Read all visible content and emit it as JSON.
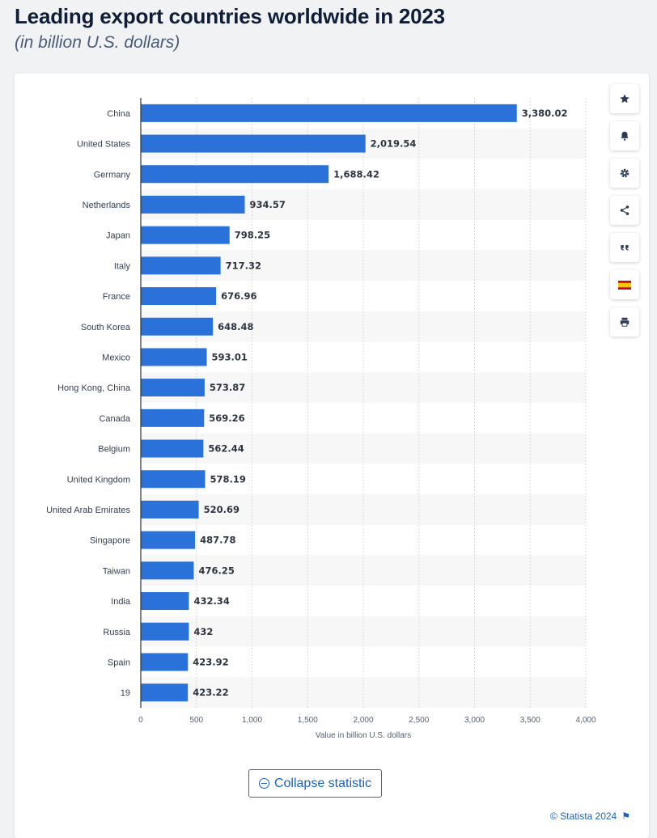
{
  "header": {
    "title": "Leading export countries worldwide in 2023",
    "subtitle": "(in billion U.S. dollars)"
  },
  "toolbar": {
    "items": [
      {
        "icon": "star-icon"
      },
      {
        "icon": "bell-icon"
      },
      {
        "icon": "gear-icon"
      },
      {
        "icon": "share-icon"
      },
      {
        "icon": "quote-icon"
      },
      {
        "icon": "spain-flag-icon"
      },
      {
        "icon": "print-icon"
      }
    ]
  },
  "actions": {
    "collapse_label": "Collapse statistic"
  },
  "footer": {
    "credit": "© Statista 2024",
    "flag_glyph": "⚑"
  },
  "colors": {
    "bar": "#2a72d9",
    "accent": "#1a63b8",
    "band": "#f7f7f7"
  },
  "chart_data": {
    "type": "bar",
    "orientation": "horizontal",
    "categories": [
      "China",
      "United States",
      "Germany",
      "Netherlands",
      "Japan",
      "Italy",
      "France",
      "South Korea",
      "Mexico",
      "Hong Kong, China",
      "Canada",
      "Belgium",
      "United Kingdom",
      "United Arab Emirates",
      "Singapore",
      "Taiwan",
      "India",
      "Russia",
      "Spain",
      "19"
    ],
    "values": [
      3380.02,
      2019.54,
      1688.42,
      934.57,
      798.25,
      717.32,
      676.96,
      648.48,
      593.01,
      573.87,
      569.26,
      562.44,
      578.19,
      520.69,
      487.78,
      476.25,
      432.34,
      432,
      423.92,
      423.22
    ],
    "value_labels": [
      "3,380.02",
      "2,019.54",
      "1,688.42",
      "934.57",
      "798.25",
      "717.32",
      "676.96",
      "648.48",
      "593.01",
      "573.87",
      "569.26",
      "562.44",
      "578.19",
      "520.69",
      "487.78",
      "476.25",
      "432.34",
      "432",
      "423.92",
      "423.22"
    ],
    "xlabel": "Value in billion U.S. dollars",
    "ylabel": "",
    "xlim": [
      0,
      4000
    ],
    "xticks": [
      0,
      500,
      1000,
      1500,
      2000,
      2500,
      3000,
      3500,
      4000
    ],
    "xtick_labels": [
      "0",
      "500",
      "1,000",
      "1,500",
      "2,000",
      "2,500",
      "3,000",
      "3,500",
      "4,000"
    ],
    "grid": true,
    "legend": "none"
  }
}
